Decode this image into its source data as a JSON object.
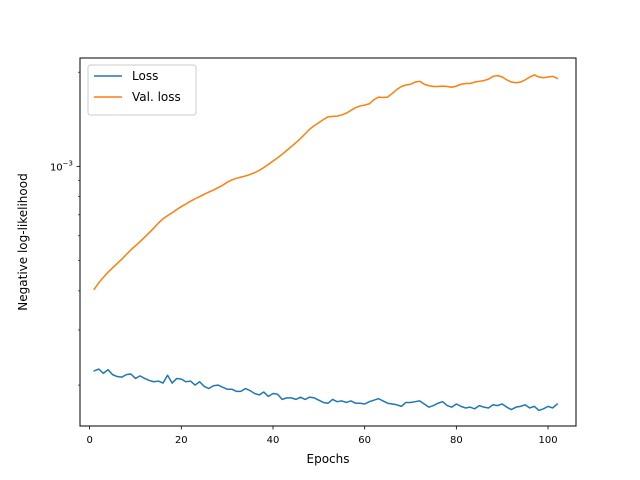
{
  "chart_data": {
    "type": "line",
    "title": "",
    "xlabel": "Epochs",
    "ylabel": "Negative log-likelihood",
    "xlim": [
      -2.1,
      106.1
    ],
    "ylim": [
      0.000148,
      0.00222
    ],
    "yscale": "log",
    "grid": false,
    "legend": "top-left",
    "xticks": [
      0,
      20,
      40,
      60,
      80,
      100
    ],
    "yticks": [
      {
        "value": 0.001,
        "base": "10",
        "exp": "−3"
      }
    ],
    "series": [
      {
        "name": "Loss",
        "color": "#1f77b4",
        "x": [
          1,
          2,
          3,
          4,
          5,
          6,
          7,
          8,
          9,
          10,
          11,
          12,
          13,
          14,
          15,
          16,
          17,
          18,
          19,
          20,
          21,
          22,
          23,
          24,
          25,
          26,
          27,
          28,
          29,
          30,
          31,
          32,
          33,
          34,
          35,
          36,
          37,
          38,
          39,
          40,
          41,
          42,
          43,
          44,
          45,
          46,
          47,
          48,
          49,
          50,
          51,
          52,
          53,
          54,
          55,
          56,
          57,
          58,
          59,
          60,
          61,
          62,
          63,
          64,
          65,
          66,
          67,
          68,
          69,
          70,
          71,
          72,
          73,
          74,
          75,
          76,
          77,
          78,
          79,
          80,
          81,
          82,
          83,
          84,
          85,
          86,
          87,
          88,
          89,
          90,
          91,
          92,
          93,
          94,
          95,
          96,
          97,
          98,
          99,
          100,
          101,
          102
        ],
        "values": [
          0.000222,
          0.000225,
          0.000218,
          0.000224,
          0.000216,
          0.000213,
          0.000212,
          0.000216,
          0.000217,
          0.00021,
          0.000214,
          0.00021,
          0.000207,
          0.000205,
          0.000206,
          0.000203,
          0.000215,
          0.000203,
          0.00021,
          0.000209,
          0.000205,
          0.000206,
          0.0002,
          0.000205,
          0.000198,
          0.000195,
          0.000199,
          0.0002,
          0.000197,
          0.000194,
          0.000194,
          0.000191,
          0.000191,
          0.000195,
          0.000192,
          0.000188,
          0.000186,
          0.00019,
          0.000184,
          0.000188,
          0.000187,
          0.00018,
          0.000182,
          0.000182,
          0.00018,
          0.000183,
          0.00018,
          0.000183,
          0.000182,
          0.000179,
          0.000176,
          0.000175,
          0.00018,
          0.000177,
          0.000178,
          0.000176,
          0.000178,
          0.000175,
          0.000175,
          0.000174,
          0.000177,
          0.000179,
          0.000181,
          0.000178,
          0.000175,
          0.000174,
          0.000173,
          0.000171,
          0.000176,
          0.000176,
          0.000177,
          0.000178,
          0.000174,
          0.00017,
          0.000172,
          0.000175,
          0.000177,
          0.000172,
          0.00017,
          0.000174,
          0.000171,
          0.000169,
          0.00017,
          0.000168,
          0.000172,
          0.00017,
          0.000169,
          0.000173,
          0.000172,
          0.000174,
          0.00017,
          0.000167,
          0.00017,
          0.000171,
          0.000173,
          0.000169,
          0.000171,
          0.000166,
          0.000168,
          0.000171,
          0.000169,
          0.000174
        ]
      },
      {
        "name": "Val. loss",
        "color": "#ff7f0e",
        "x": [
          1,
          2,
          3,
          4,
          5,
          6,
          7,
          8,
          9,
          10,
          11,
          12,
          13,
          14,
          15,
          16,
          17,
          18,
          19,
          20,
          21,
          22,
          23,
          24,
          25,
          26,
          27,
          28,
          29,
          30,
          31,
          32,
          33,
          34,
          35,
          36,
          37,
          38,
          39,
          40,
          41,
          42,
          43,
          44,
          45,
          46,
          47,
          48,
          49,
          50,
          51,
          52,
          53,
          54,
          55,
          56,
          57,
          58,
          59,
          60,
          61,
          62,
          63,
          64,
          65,
          66,
          67,
          68,
          69,
          70,
          71,
          72,
          73,
          74,
          75,
          76,
          77,
          78,
          79,
          80,
          81,
          82,
          83,
          84,
          85,
          86,
          87,
          88,
          89,
          90,
          91,
          92,
          93,
          94,
          95,
          96,
          97,
          98,
          99,
          100,
          101,
          102
        ],
        "values": [
          0.000405,
          0.000425,
          0.000442,
          0.000459,
          0.000474,
          0.000489,
          0.000505,
          0.000523,
          0.000541,
          0.000558,
          0.000575,
          0.000594,
          0.000614,
          0.000635,
          0.000659,
          0.00068,
          0.000696,
          0.000711,
          0.000728,
          0.000744,
          0.000758,
          0.000774,
          0.000788,
          0.000801,
          0.000815,
          0.000828,
          0.00084,
          0.000855,
          0.00087,
          0.00089,
          0.000905,
          0.000916,
          0.000924,
          0.000932,
          0.000942,
          0.000955,
          0.000971,
          0.000992,
          0.001015,
          0.00104,
          0.001065,
          0.001094,
          0.001125,
          0.001157,
          0.001191,
          0.001228,
          0.00127,
          0.001315,
          0.00135,
          0.00138,
          0.001412,
          0.00144,
          0.001445,
          0.001447,
          0.00146,
          0.00148,
          0.00151,
          0.00154,
          0.00156,
          0.00157,
          0.001585,
          0.001633,
          0.001665,
          0.00166,
          0.001665,
          0.00171,
          0.00176,
          0.0018,
          0.00182,
          0.00183,
          0.00186,
          0.00187,
          0.00183,
          0.00181,
          0.0018,
          0.0018,
          0.001805,
          0.0018,
          0.00179,
          0.001805,
          0.00183,
          0.00184,
          0.00184,
          0.00186,
          0.00187,
          0.00188,
          0.0019,
          0.00194,
          0.00195,
          0.00193,
          0.00189,
          0.00186,
          0.00185,
          0.00186,
          0.00189,
          0.00193,
          0.00196,
          0.00193,
          0.00192,
          0.00193,
          0.00194,
          0.00191
        ]
      }
    ]
  }
}
